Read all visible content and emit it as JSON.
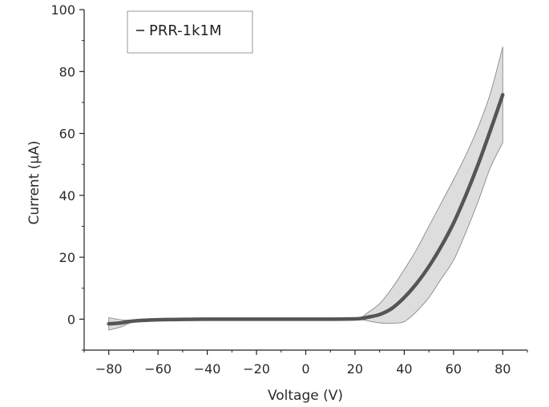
{
  "chart_data": {
    "type": "line",
    "title": "",
    "xlabel": "Voltage (V)",
    "ylabel": "Current (μA)",
    "xlim": [
      -90,
      90
    ],
    "ylim": [
      -10,
      100
    ],
    "xticks": [
      -80,
      -60,
      -40,
      -20,
      0,
      20,
      40,
      60,
      80
    ],
    "yticks": [
      0,
      20,
      40,
      60,
      80,
      100
    ],
    "xtick_labels": [
      "−80",
      "−60",
      "−40",
      "−20",
      "0",
      "20",
      "40",
      "60",
      "80"
    ],
    "ytick_labels": [
      "0",
      "20",
      "40",
      "60",
      "80",
      "100"
    ],
    "grid": false,
    "legend_position": "top-left",
    "series": [
      {
        "name": "PRR-1k1M",
        "color": "#555555",
        "band_color": "#dddddd",
        "x": [
          -80,
          -75,
          -70,
          -60,
          -40,
          -20,
          0,
          10,
          20,
          23,
          25,
          30,
          35,
          40,
          45,
          50,
          55,
          60,
          65,
          70,
          75,
          80
        ],
        "y": [
          -1.5,
          -1.2,
          -0.6,
          -0.2,
          0,
          0,
          0,
          0,
          0.1,
          0.3,
          0.6,
          1.5,
          3.5,
          7.0,
          11.5,
          17.0,
          23.5,
          31.0,
          40.0,
          50.0,
          61.0,
          72.5
        ],
        "upper": [
          0.5,
          -0.2,
          -0.3,
          -0.1,
          0,
          0,
          0,
          0,
          0.3,
          0.8,
          2.0,
          5.0,
          10.0,
          16.0,
          22.5,
          30.0,
          37.5,
          45.0,
          53.0,
          62.0,
          73.0,
          88.0
        ],
        "lower": [
          -3.5,
          -2.5,
          -1.0,
          -0.3,
          0,
          0,
          0,
          0,
          -0.1,
          -0.2,
          -0.5,
          -1.2,
          -1.3,
          -0.8,
          2.5,
          7.0,
          13.0,
          19.0,
          28.0,
          38.0,
          49.0,
          57.0
        ]
      }
    ]
  }
}
